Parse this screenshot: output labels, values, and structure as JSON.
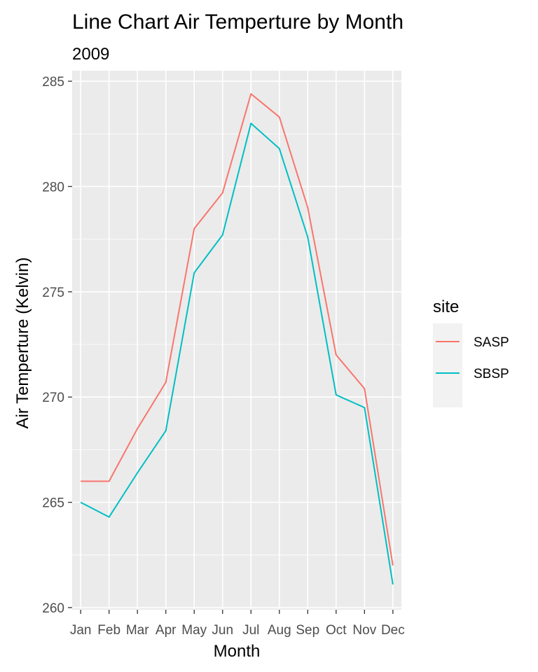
{
  "chart_data": {
    "type": "line",
    "title": "Line Chart Air Temperture by Month",
    "subtitle": "2009",
    "xlabel": "Month",
    "ylabel": "Air Temperture (Kelvin)",
    "categories": [
      "Jan",
      "Feb",
      "Mar",
      "Apr",
      "May",
      "Jun",
      "Jul",
      "Aug",
      "Sep",
      "Oct",
      "Nov",
      "Dec"
    ],
    "yticks": [
      260,
      265,
      270,
      275,
      280,
      285
    ],
    "ylim": [
      259.9,
      285.5
    ],
    "grid": true,
    "legend": {
      "title": "site",
      "position": "right"
    },
    "series": [
      {
        "name": "SASP",
        "color": "#F8766D",
        "values": [
          266.0,
          266.0,
          268.5,
          270.7,
          278.0,
          279.7,
          284.4,
          283.3,
          279.0,
          272.0,
          270.4,
          262.0
        ]
      },
      {
        "name": "SBSP",
        "color": "#00BFC4",
        "values": [
          265.0,
          264.3,
          266.4,
          268.4,
          275.9,
          277.7,
          283.0,
          281.8,
          277.6,
          270.1,
          269.5,
          261.1
        ]
      }
    ]
  }
}
